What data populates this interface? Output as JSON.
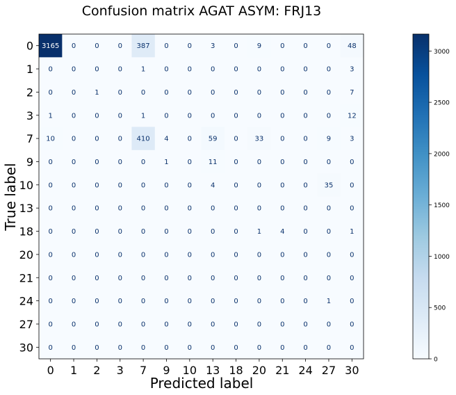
{
  "chart_data": {
    "type": "heatmap",
    "title": "Confusion matrix AGAT ASYM: FRJ13",
    "xlabel": "Predicted label",
    "ylabel": "True label",
    "x_categories": [
      "0",
      "1",
      "2",
      "3",
      "7",
      "9",
      "10",
      "13",
      "18",
      "20",
      "21",
      "24",
      "27",
      "30"
    ],
    "y_categories": [
      "0",
      "1",
      "2",
      "3",
      "7",
      "9",
      "10",
      "13",
      "18",
      "20",
      "21",
      "24",
      "27",
      "30"
    ],
    "values": [
      [
        3165,
        0,
        0,
        0,
        387,
        0,
        0,
        3,
        0,
        9,
        0,
        0,
        0,
        48
      ],
      [
        0,
        0,
        0,
        0,
        1,
        0,
        0,
        0,
        0,
        0,
        0,
        0,
        0,
        3
      ],
      [
        0,
        0,
        1,
        0,
        0,
        0,
        0,
        0,
        0,
        0,
        0,
        0,
        0,
        7
      ],
      [
        1,
        0,
        0,
        0,
        1,
        0,
        0,
        0,
        0,
        0,
        0,
        0,
        0,
        12
      ],
      [
        10,
        0,
        0,
        0,
        410,
        4,
        0,
        59,
        0,
        33,
        0,
        0,
        9,
        3
      ],
      [
        0,
        0,
        0,
        0,
        0,
        1,
        0,
        11,
        0,
        0,
        0,
        0,
        0,
        0
      ],
      [
        0,
        0,
        0,
        0,
        0,
        0,
        0,
        4,
        0,
        0,
        0,
        0,
        35,
        0
      ],
      [
        0,
        0,
        0,
        0,
        0,
        0,
        0,
        0,
        0,
        0,
        0,
        0,
        0,
        0
      ],
      [
        0,
        0,
        0,
        0,
        0,
        0,
        0,
        0,
        0,
        1,
        4,
        0,
        0,
        1
      ],
      [
        0,
        0,
        0,
        0,
        0,
        0,
        0,
        0,
        0,
        0,
        0,
        0,
        0,
        0
      ],
      [
        0,
        0,
        0,
        0,
        0,
        0,
        0,
        0,
        0,
        0,
        0,
        0,
        0,
        0
      ],
      [
        0,
        0,
        0,
        0,
        0,
        0,
        0,
        0,
        0,
        0,
        0,
        0,
        1,
        0
      ],
      [
        0,
        0,
        0,
        0,
        0,
        0,
        0,
        0,
        0,
        0,
        0,
        0,
        0,
        0
      ],
      [
        0,
        0,
        0,
        0,
        0,
        0,
        0,
        0,
        0,
        0,
        0,
        0,
        0,
        0
      ]
    ],
    "colormap": "Blues",
    "color_low": "#f7fbff",
    "color_high": "#08306b",
    "colorbar": {
      "range": [
        0,
        3165
      ],
      "ticks": [
        0,
        500,
        1000,
        1500,
        2000,
        2500,
        3000
      ]
    },
    "grid": false,
    "legend": "none"
  }
}
